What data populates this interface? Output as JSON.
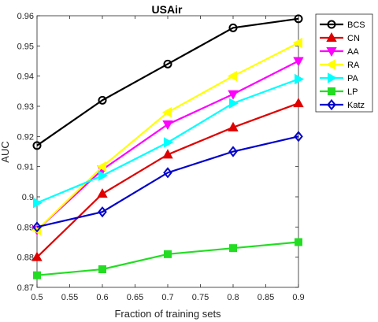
{
  "chart_data": {
    "type": "line",
    "title": "USAir",
    "xlabel": "Fraction of training sets",
    "ylabel": "AUC",
    "xlim": [
      0.5,
      0.9
    ],
    "ylim": [
      0.87,
      0.96
    ],
    "xticks": [
      "0.5",
      "0.55",
      "0.6",
      "0.65",
      "0.7",
      "0.75",
      "0.8",
      "0.85",
      "0.9"
    ],
    "yticks": [
      "0.87",
      "0.88",
      "0.89",
      "0.9",
      "0.91",
      "0.92",
      "0.93",
      "0.94",
      "0.95",
      "0.96"
    ],
    "x": [
      0.5,
      0.6,
      0.7,
      0.8,
      0.9
    ],
    "legend_position": "top-right",
    "grid": false,
    "series": [
      {
        "name": "BCS",
        "color": "#000000",
        "marker": "circle",
        "values": [
          0.917,
          0.932,
          0.944,
          0.956,
          0.959
        ]
      },
      {
        "name": "CN",
        "color": "#e00000",
        "marker": "triangle-up",
        "values": [
          0.88,
          0.901,
          0.914,
          0.923,
          0.931
        ]
      },
      {
        "name": "AA",
        "color": "#ff00ff",
        "marker": "triangle-down",
        "values": [
          0.889,
          0.909,
          0.924,
          0.934,
          0.945
        ]
      },
      {
        "name": "RA",
        "color": "#ffff00",
        "marker": "triangle-left",
        "values": [
          0.889,
          0.91,
          0.928,
          0.94,
          0.951
        ]
      },
      {
        "name": "PA",
        "color": "#00ffff",
        "marker": "triangle-right",
        "values": [
          0.898,
          0.907,
          0.918,
          0.931,
          0.939
        ]
      },
      {
        "name": "LP",
        "color": "#22dd22",
        "marker": "square",
        "values": [
          0.874,
          0.876,
          0.881,
          0.883,
          0.885
        ]
      },
      {
        "name": "Katz",
        "color": "#0000cc",
        "marker": "diamond",
        "values": [
          0.89,
          0.895,
          0.908,
          0.915,
          0.92
        ]
      }
    ]
  }
}
